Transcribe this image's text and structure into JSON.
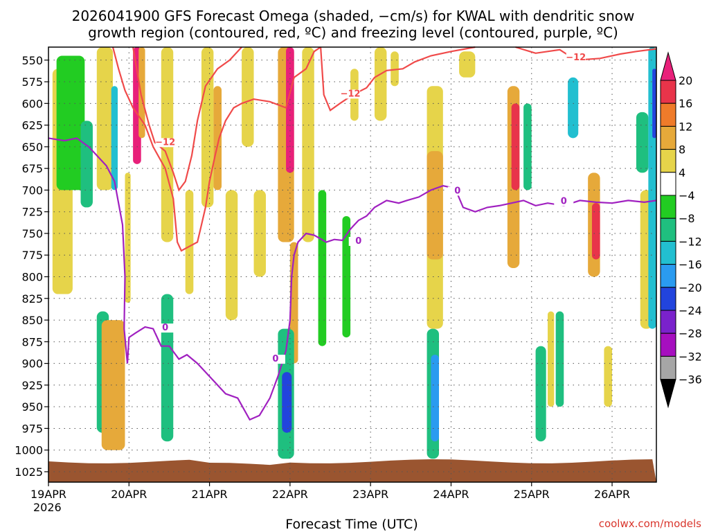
{
  "chart_data": {
    "type": "heatmap",
    "title_line1": "2026041900 GFS Forecast Omega (shaded, −cm/s) for KWAL with dendritic snow",
    "title_line2": "growth region (contoured, red, ºC) and freezing level (contoured, purple, ºC)",
    "xlabel": "Forecast Time (UTC)",
    "credit": "coolwx.com/models",
    "x_start_label": "19APR",
    "x_start_year": "2026",
    "x_ticks": [
      "19APR",
      "20APR",
      "21APR",
      "22APR",
      "23APR",
      "24APR",
      "25APR",
      "26APR"
    ],
    "x_range_days": [
      0,
      7.55
    ],
    "y_ticks": [
      550,
      575,
      600,
      625,
      650,
      675,
      700,
      725,
      750,
      775,
      800,
      825,
      850,
      875,
      900,
      925,
      950,
      975,
      1000,
      1025
    ],
    "y_range_hpa": [
      535,
      1037
    ],
    "colorbar_labels": [
      "20",
      "16",
      "12",
      "8",
      "4",
      "−4",
      "−8",
      "−12",
      "−16",
      "−20",
      "−24",
      "−28",
      "−32",
      "−36"
    ],
    "colorbar_colors": [
      "#e8344a",
      "#ef7b2a",
      "#e6a93a",
      "#e6d44a",
      "#ffffff",
      "#22cc22",
      "#1fbf7f",
      "#22bfd0",
      "#2a9bf0",
      "#2244dd",
      "#7a22cc",
      "#a60fbf",
      "#a6a6a6"
    ],
    "colorbar_top_color": "#e8207a",
    "colorbar_bottom_color": "#000000",
    "colors": {
      "dgz_contour": "#f04a4a",
      "freezing_contour": "#a020c0",
      "terrain": "#9a5530",
      "grid": "#555555"
    },
    "dgz_label": "−12",
    "freezing_label": "0",
    "dgz_upper_boundary": [
      [
        3.38,
        535
      ],
      [
        3.42,
        590
      ],
      [
        3.5,
        608
      ],
      [
        3.62,
        600
      ],
      [
        3.78,
        590
      ],
      [
        3.95,
        582
      ],
      [
        4.05,
        570
      ],
      [
        4.2,
        562
      ],
      [
        4.4,
        560
      ],
      [
        4.55,
        552
      ],
      [
        4.75,
        545
      ],
      [
        5.0,
        540
      ],
      [
        5.3,
        535
      ]
    ],
    "dgz_top_band": [
      [
        5.8,
        535
      ],
      [
        6.05,
        542
      ],
      [
        6.35,
        538
      ],
      [
        6.55,
        550
      ],
      [
        6.85,
        548
      ],
      [
        7.1,
        543
      ],
      [
        7.3,
        540
      ],
      [
        7.55,
        537
      ]
    ],
    "dgz_lower_boundary": [
      [
        0.8,
        535
      ],
      [
        0.87,
        560
      ],
      [
        0.95,
        585
      ],
      [
        1.05,
        605
      ],
      [
        1.2,
        625
      ],
      [
        1.3,
        650
      ],
      [
        1.45,
        675
      ],
      [
        1.55,
        710
      ],
      [
        1.6,
        760
      ],
      [
        1.65,
        770
      ],
      [
        1.75,
        765
      ],
      [
        1.85,
        760
      ],
      [
        1.9,
        740
      ],
      [
        1.95,
        720
      ],
      [
        2.0,
        690
      ],
      [
        2.07,
        660
      ],
      [
        2.12,
        640
      ],
      [
        2.2,
        620
      ],
      [
        2.3,
        605
      ],
      [
        2.4,
        600
      ],
      [
        2.55,
        595
      ],
      [
        2.75,
        598
      ],
      [
        2.95,
        605
      ],
      [
        3.05,
        570
      ],
      [
        3.2,
        560
      ],
      [
        3.3,
        540
      ],
      [
        3.38,
        535
      ]
    ],
    "dgz_inner_boundary": [
      [
        1.05,
        535
      ],
      [
        1.15,
        590
      ],
      [
        1.25,
        625
      ],
      [
        1.32,
        645
      ],
      [
        1.45,
        655
      ],
      [
        1.55,
        680
      ],
      [
        1.62,
        700
      ],
      [
        1.7,
        690
      ],
      [
        1.78,
        660
      ],
      [
        1.85,
        620
      ],
      [
        1.95,
        580
      ],
      [
        2.1,
        560
      ],
      [
        2.25,
        550
      ],
      [
        2.35,
        540
      ],
      [
        2.4,
        535
      ]
    ],
    "freezing_level": [
      [
        0.0,
        640
      ],
      [
        0.2,
        643
      ],
      [
        0.35,
        640
      ],
      [
        0.5,
        650
      ],
      [
        0.6,
        660
      ],
      [
        0.72,
        672
      ],
      [
        0.82,
        690
      ],
      [
        0.92,
        740
      ],
      [
        0.95,
        800
      ],
      [
        0.94,
        860
      ],
      [
        0.98,
        900
      ],
      [
        1.0,
        870
      ],
      [
        1.08,
        865
      ],
      [
        1.2,
        858
      ],
      [
        1.3,
        860
      ],
      [
        1.4,
        880
      ],
      [
        1.5,
        880
      ],
      [
        1.62,
        895
      ],
      [
        1.72,
        890
      ],
      [
        1.85,
        900
      ],
      [
        1.95,
        910
      ],
      [
        2.05,
        920
      ],
      [
        2.2,
        935
      ],
      [
        2.35,
        940
      ],
      [
        2.5,
        965
      ],
      [
        2.62,
        960
      ],
      [
        2.75,
        940
      ],
      [
        2.85,
        915
      ],
      [
        2.95,
        885
      ],
      [
        3.0,
        850
      ],
      [
        3.02,
        800
      ],
      [
        3.05,
        775
      ],
      [
        3.1,
        760
      ],
      [
        3.2,
        750
      ],
      [
        3.3,
        752
      ],
      [
        3.45,
        760
      ],
      [
        3.55,
        757
      ],
      [
        3.65,
        758
      ],
      [
        3.75,
        745
      ],
      [
        3.85,
        735
      ],
      [
        3.95,
        730
      ],
      [
        4.05,
        720
      ],
      [
        4.2,
        712
      ],
      [
        4.35,
        715
      ],
      [
        4.45,
        712
      ],
      [
        4.6,
        708
      ],
      [
        4.75,
        700
      ],
      [
        4.9,
        695
      ],
      [
        5.05,
        698
      ],
      [
        5.15,
        720
      ],
      [
        5.3,
        725
      ],
      [
        5.45,
        720
      ],
      [
        5.6,
        718
      ],
      [
        5.75,
        715
      ],
      [
        5.9,
        712
      ],
      [
        6.05,
        718
      ],
      [
        6.2,
        715
      ],
      [
        6.4,
        718
      ],
      [
        6.6,
        712
      ],
      [
        6.8,
        714
      ],
      [
        7.0,
        715
      ],
      [
        7.2,
        712
      ],
      [
        7.4,
        714
      ],
      [
        7.55,
        712
      ]
    ],
    "omega_cells": [
      {
        "x": [
          0.05,
          0.3
        ],
        "p": [
          560,
          820
        ],
        "v": 4
      },
      {
        "x": [
          0.1,
          0.45
        ],
        "p": [
          545,
          700
        ],
        "v": -6
      },
      {
        "x": [
          0.4,
          0.55
        ],
        "p": [
          620,
          720
        ],
        "v": -10
      },
      {
        "x": [
          0.6,
          0.75
        ],
        "p": [
          840,
          980
        ],
        "v": -8
      },
      {
        "x": [
          0.6,
          0.8
        ],
        "p": [
          535,
          700
        ],
        "v": 4
      },
      {
        "x": [
          0.78,
          0.86
        ],
        "p": [
          580,
          700
        ],
        "v": -14
      },
      {
        "x": [
          0.66,
          0.95
        ],
        "p": [
          850,
          1000
        ],
        "v": 9
      },
      {
        "x": [
          0.95,
          1.02
        ],
        "p": [
          680,
          830
        ],
        "v": 5
      },
      {
        "x": [
          1.05,
          1.15
        ],
        "p": [
          535,
          670
        ],
        "v": 20
      },
      {
        "x": [
          1.12,
          1.2
        ],
        "p": [
          535,
          640
        ],
        "v": 8
      },
      {
        "x": [
          1.4,
          1.55
        ],
        "p": [
          535,
          760
        ],
        "v": 5
      },
      {
        "x": [
          1.4,
          1.55
        ],
        "p": [
          820,
          990
        ],
        "v": -10
      },
      {
        "x": [
          1.7,
          1.8
        ],
        "p": [
          700,
          820
        ],
        "v": 5
      },
      {
        "x": [
          1.9,
          2.05
        ],
        "p": [
          535,
          720
        ],
        "v": 5
      },
      {
        "x": [
          2.05,
          2.15
        ],
        "p": [
          580,
          700
        ],
        "v": 8
      },
      {
        "x": [
          2.2,
          2.35
        ],
        "p": [
          700,
          850
        ],
        "v": 5
      },
      {
        "x": [
          2.4,
          2.55
        ],
        "p": [
          535,
          650
        ],
        "v": 5
      },
      {
        "x": [
          2.55,
          2.7
        ],
        "p": [
          700,
          800
        ],
        "v": 5
      },
      {
        "x": [
          2.85,
          3.05
        ],
        "p": [
          535,
          760
        ],
        "v": 10
      },
      {
        "x": [
          2.95,
          3.05
        ],
        "p": [
          535,
          680
        ],
        "v": 20
      },
      {
        "x": [
          3.0,
          3.1
        ],
        "p": [
          760,
          900
        ],
        "v": 8
      },
      {
        "x": [
          2.85,
          3.05
        ],
        "p": [
          860,
          1010
        ],
        "v": -10
      },
      {
        "x": [
          2.9,
          3.02
        ],
        "p": [
          910,
          980
        ],
        "v": -20
      },
      {
        "x": [
          3.15,
          3.3
        ],
        "p": [
          535,
          760
        ],
        "v": 5
      },
      {
        "x": [
          3.35,
          3.45
        ],
        "p": [
          700,
          880
        ],
        "v": -6
      },
      {
        "x": [
          3.65,
          3.75
        ],
        "p": [
          730,
          870
        ],
        "v": -6
      },
      {
        "x": [
          3.75,
          3.85
        ],
        "p": [
          560,
          620
        ],
        "v": 5
      },
      {
        "x": [
          4.05,
          4.2
        ],
        "p": [
          535,
          620
        ],
        "v": 5
      },
      {
        "x": [
          4.25,
          4.35
        ],
        "p": [
          540,
          580
        ],
        "v": 5
      },
      {
        "x": [
          4.7,
          4.9
        ],
        "p": [
          580,
          860
        ],
        "v": 5
      },
      {
        "x": [
          4.7,
          4.85
        ],
        "p": [
          860,
          1010
        ],
        "v": -8
      },
      {
        "x": [
          4.75,
          4.85
        ],
        "p": [
          890,
          990
        ],
        "v": -16
      },
      {
        "x": [
          4.7,
          4.9
        ],
        "p": [
          655,
          780
        ],
        "v": 9
      },
      {
        "x": [
          5.1,
          5.3
        ],
        "p": [
          540,
          570
        ],
        "v": 5
      },
      {
        "x": [
          5.7,
          5.85
        ],
        "p": [
          580,
          790
        ],
        "v": 9
      },
      {
        "x": [
          5.75,
          5.85
        ],
        "p": [
          600,
          700
        ],
        "v": 16
      },
      {
        "x": [
          5.9,
          6.0
        ],
        "p": [
          600,
          700
        ],
        "v": -8
      },
      {
        "x": [
          6.05,
          6.18
        ],
        "p": [
          880,
          990
        ],
        "v": -8
      },
      {
        "x": [
          6.3,
          6.4
        ],
        "p": [
          840,
          950
        ],
        "v": -8
      },
      {
        "x": [
          6.2,
          6.28
        ],
        "p": [
          840,
          950
        ],
        "v": 5
      },
      {
        "x": [
          6.45,
          6.58
        ],
        "p": [
          570,
          640
        ],
        "v": -14
      },
      {
        "x": [
          6.7,
          6.85
        ],
        "p": [
          680,
          800
        ],
        "v": 9
      },
      {
        "x": [
          6.75,
          6.85
        ],
        "p": [
          715,
          780
        ],
        "v": 16
      },
      {
        "x": [
          6.9,
          7.0
        ],
        "p": [
          880,
          950
        ],
        "v": 5
      },
      {
        "x": [
          7.3,
          7.45
        ],
        "p": [
          610,
          680
        ],
        "v": -8
      },
      {
        "x": [
          7.35,
          7.5
        ],
        "p": [
          700,
          860
        ],
        "v": 5
      },
      {
        "x": [
          7.45,
          7.55
        ],
        "p": [
          535,
          860
        ],
        "v": -14
      },
      {
        "x": [
          7.5,
          7.55
        ],
        "p": [
          560,
          640
        ],
        "v": -20
      }
    ]
  }
}
